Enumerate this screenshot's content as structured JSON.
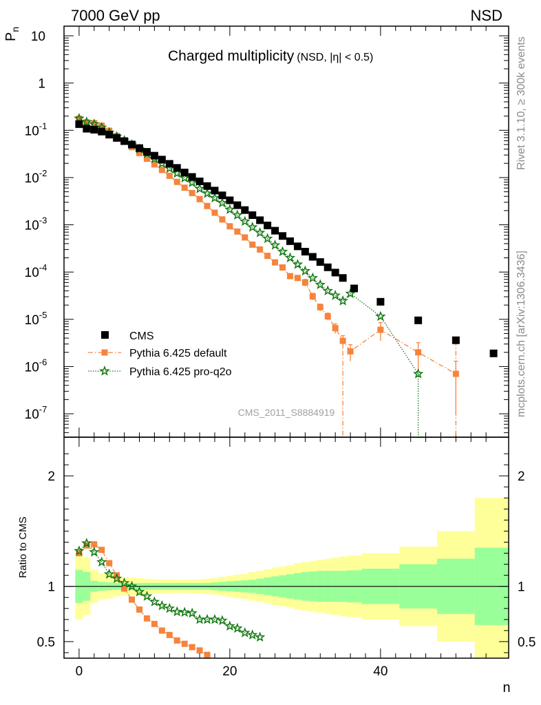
{
  "header": {
    "left": "7000 GeV pp",
    "right": "NSD"
  },
  "side": {
    "rivet": "Rivet 3.1.10, ≥ 300k events",
    "mcplots": "mcplots.cern.ch [arXiv:1306.3436]"
  },
  "chart_data": [
    {
      "type": "scatter",
      "title": "Charged multiplicity",
      "subtitle": "(NSD, |η| < 0.5)",
      "watermark": "CMS_2011_S8884919",
      "ylabel": "P",
      "ylabel_sub": "n",
      "xlabel": "n",
      "yscale": "log",
      "ylim": [
        3.2e-08,
        16
      ],
      "xlim": [
        -2,
        57
      ],
      "yticks": [
        {
          "v": 1e-07,
          "base": "10",
          "exp": "-7"
        },
        {
          "v": 1e-06,
          "base": "10",
          "exp": "-6"
        },
        {
          "v": 1e-05,
          "base": "10",
          "exp": "-5"
        },
        {
          "v": 0.0001,
          "base": "10",
          "exp": "-4"
        },
        {
          "v": 0.001,
          "base": "10",
          "exp": "-3"
        },
        {
          "v": 0.01,
          "base": "10",
          "exp": "-2"
        },
        {
          "v": 0.1,
          "base": "10",
          "exp": "-1"
        },
        {
          "v": 1,
          "base": "1",
          "exp": ""
        },
        {
          "v": 10,
          "base": "10",
          "exp": ""
        }
      ],
      "legend_position": "bottom-left",
      "series": [
        {
          "name": "CMS",
          "color": "#000000",
          "marker": "square",
          "x": [
            0,
            1,
            2,
            3,
            4,
            5,
            6,
            7,
            8,
            9,
            10,
            11,
            12,
            13,
            14,
            15,
            16,
            17,
            18,
            19,
            20,
            21,
            22,
            23,
            24,
            25,
            26,
            27,
            28,
            29,
            30,
            31,
            32,
            33,
            34,
            35,
            36.5,
            40,
            45,
            50,
            55
          ],
          "y": [
            0.135,
            0.108,
            0.103,
            0.094,
            0.081,
            0.069,
            0.059,
            0.05,
            0.042,
            0.035,
            0.029,
            0.024,
            0.0195,
            0.016,
            0.0128,
            0.0103,
            0.0083,
            0.0066,
            0.0053,
            0.0042,
            0.0033,
            0.0026,
            0.00205,
            0.0016,
            0.00125,
            0.00097,
            0.00075,
            0.00058,
            0.00045,
            0.00035,
            0.00027,
            0.00021,
            0.000163,
            0.000126,
            9.75e-05,
            7.5e-05,
            4.5e-05,
            2.35e-05,
            9.5e-06,
            3.6e-06,
            1.9e-06
          ]
        },
        {
          "name": "Pythia 6.425 default",
          "color": "#f5843c",
          "marker": "square",
          "line": "dash-dot",
          "x": [
            0,
            1,
            2,
            3,
            4,
            5,
            6,
            7,
            8,
            9,
            10,
            11,
            12,
            13,
            14,
            15,
            16,
            17,
            18,
            19,
            20,
            21,
            22,
            23,
            24,
            25,
            26,
            27,
            28,
            29,
            30,
            31,
            32,
            33,
            34,
            35,
            36,
            40,
            45,
            50
          ],
          "y": [
            0.175,
            0.148,
            0.142,
            0.125,
            0.098,
            0.076,
            0.058,
            0.044,
            0.033,
            0.025,
            0.019,
            0.0145,
            0.0109,
            0.0081,
            0.0061,
            0.0047,
            0.0035,
            0.0025,
            0.0018,
            0.0013,
            0.00093,
            0.00072,
            0.00054,
            0.00038,
            0.0003,
            0.00022,
            0.00016,
            0.000125,
            8.2e-05,
            7.5e-05,
            6e-05,
            3.05e-05,
            1.8e-05,
            1.15e-05,
            6.5e-06,
            3.5e-06,
            2.1e-06,
            6e-06,
            2e-06,
            7e-07
          ],
          "errors": [
            0,
            0,
            0,
            0,
            0,
            0,
            0,
            0,
            0,
            0,
            0,
            0,
            0,
            0,
            0,
            0,
            0,
            0,
            0,
            0,
            0,
            0,
            0,
            0,
            0,
            0,
            0,
            0,
            0,
            0,
            1e-05,
            5e-06,
            3e-06,
            2e-06,
            1.5e-06,
            1e-06,
            8e-07,
            2.5e-06,
            1.2e-06,
            6e-07
          ]
        },
        {
          "name": "Pythia 6.425 pro-q2o",
          "color": "#117711",
          "marker": "star",
          "line": "dotted",
          "x": [
            0,
            1,
            2,
            3,
            4,
            5,
            6,
            7,
            8,
            9,
            10,
            11,
            12,
            13,
            14,
            15,
            16,
            17,
            18,
            19,
            20,
            21,
            22,
            23,
            24,
            25,
            26,
            27,
            28,
            29,
            30,
            31,
            32,
            33,
            34,
            35,
            36,
            40,
            45
          ],
          "y": [
            0.178,
            0.15,
            0.135,
            0.115,
            0.09,
            0.074,
            0.061,
            0.05,
            0.04,
            0.032,
            0.025,
            0.0198,
            0.0156,
            0.0123,
            0.0098,
            0.0078,
            0.0058,
            0.0046,
            0.0037,
            0.0029,
            0.0021,
            0.0016,
            0.00118,
            0.00089,
            0.00068,
            0.00051,
            0.00037,
            0.00027,
            0.0002,
            0.000145,
            0.000105,
            7.5e-05,
            5.4e-05,
            4e-05,
            3.2e-05,
            2.45e-05,
            3.5e-05,
            1.15e-05,
            7e-07
          ]
        }
      ]
    },
    {
      "type": "scatter",
      "ylabel": "Ratio to CMS",
      "xlabel": "n",
      "ylim": [
        0.35,
        2.35
      ],
      "xlim": [
        -2,
        57
      ],
      "yticks": [
        0.5,
        1,
        2
      ],
      "xticks": [
        0,
        20,
        40
      ],
      "bands": {
        "x_edges": [
          -0.5,
          0.5,
          1.5,
          2.5,
          3.5,
          4.5,
          5.5,
          6.5,
          7.5,
          8.5,
          9.5,
          10.5,
          11.5,
          12.5,
          13.5,
          14.5,
          15.5,
          16.5,
          17.5,
          18.5,
          19.5,
          20.5,
          21.5,
          22.5,
          23.5,
          24.5,
          25.5,
          26.5,
          27.5,
          28.5,
          29.5,
          30.5,
          31.5,
          32.5,
          33.5,
          34.5,
          35.5,
          37.5,
          42.5,
          47.5,
          52.5,
          57.5
        ],
        "stat": [
          0.15,
          0.13,
          0.05,
          0.04,
          0.035,
          0.03,
          0.03,
          0.03,
          0.03,
          0.03,
          0.03,
          0.03,
          0.03,
          0.03,
          0.03,
          0.03,
          0.03,
          0.03,
          0.035,
          0.04,
          0.045,
          0.05,
          0.055,
          0.06,
          0.07,
          0.08,
          0.09,
          0.1,
          0.11,
          0.12,
          0.13,
          0.135,
          0.14,
          0.14,
          0.14,
          0.14,
          0.145,
          0.16,
          0.2,
          0.25,
          0.35
        ],
        "total": [
          0.3,
          0.26,
          0.15,
          0.12,
          0.11,
          0.09,
          0.085,
          0.08,
          0.075,
          0.07,
          0.065,
          0.063,
          0.062,
          0.06,
          0.06,
          0.062,
          0.065,
          0.07,
          0.075,
          0.085,
          0.095,
          0.105,
          0.115,
          0.13,
          0.14,
          0.155,
          0.17,
          0.18,
          0.19,
          0.21,
          0.22,
          0.23,
          0.24,
          0.25,
          0.26,
          0.27,
          0.28,
          0.3,
          0.36,
          0.5,
          0.8
        ]
      },
      "series": [
        {
          "name": "Pythia 6.425 default",
          "color": "#f5843c",
          "x": [
            0,
            1,
            2,
            3,
            4,
            5,
            6,
            7,
            8,
            9,
            10,
            11,
            12,
            13,
            14,
            15,
            16,
            17
          ],
          "y": [
            1.3,
            1.37,
            1.38,
            1.33,
            1.21,
            1.1,
            0.98,
            0.88,
            0.79,
            0.71,
            0.66,
            0.6,
            0.56,
            0.51,
            0.48,
            0.45,
            0.42,
            0.38
          ]
        },
        {
          "name": "Pythia 6.425 pro-q2o",
          "color": "#117711",
          "x": [
            0,
            1,
            2,
            3,
            4,
            5,
            6,
            7,
            8,
            9,
            10,
            11,
            12,
            13,
            14,
            15,
            16,
            17,
            18,
            19,
            20,
            21,
            22,
            23,
            24
          ],
          "y": [
            1.32,
            1.39,
            1.31,
            1.22,
            1.11,
            1.07,
            1.03,
            1.0,
            0.95,
            0.91,
            0.86,
            0.825,
            0.8,
            0.77,
            0.765,
            0.757,
            0.7,
            0.7,
            0.7,
            0.69,
            0.64,
            0.62,
            0.58,
            0.56,
            0.54
          ]
        }
      ]
    }
  ]
}
